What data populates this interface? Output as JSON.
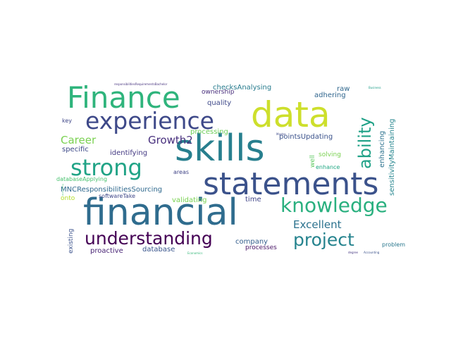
{
  "words": [
    {
      "text": "data",
      "color": "#cddf2c"
    },
    {
      "text": "skills",
      "color": "#277f8e"
    },
    {
      "text": "financial",
      "color": "#2f6c8e"
    },
    {
      "text": "statements",
      "color": "#3b528b"
    },
    {
      "text": "Finance",
      "color": "#2fb47c"
    },
    {
      "text": "experience",
      "color": "#3e4989"
    },
    {
      "text": "strong",
      "color": "#20a386"
    },
    {
      "text": "knowledge",
      "color": "#2ab07f"
    },
    {
      "text": "understanding",
      "color": "#440154"
    },
    {
      "text": "project",
      "color": "#25838e"
    },
    {
      "text": "ability",
      "color": "#1fa187"
    },
    {
      "text": "Excellent",
      "color": "#2c728e"
    },
    {
      "text": "Growth2",
      "color": "#472f7d"
    },
    {
      "text": "Career",
      "color": "#7ad151"
    },
    {
      "text": "identifying",
      "color": "#443a83"
    },
    {
      "text": "specific",
      "color": "#3e4a89"
    },
    {
      "text": "processing",
      "color": "#6ece58"
    },
    {
      "text": "pointsUpdating",
      "color": "#3b528b"
    },
    {
      "text": "checksAnalysing",
      "color": "#287c8e"
    },
    {
      "text": "quality",
      "color": "#3e4989"
    },
    {
      "text": "ownership",
      "color": "#472d7b"
    },
    {
      "text": "raw",
      "color": "#31688e"
    },
    {
      "text": "adhering",
      "color": "#31668e"
    },
    {
      "text": "MNCResponsibilitiesSourcing",
      "color": "#30698e"
    },
    {
      "text": "databaseApplying",
      "color": "#48c16e"
    },
    {
      "text": "softwareTake",
      "color": "#3f4788"
    },
    {
      "text": "validating",
      "color": "#7ad151"
    },
    {
      "text": "areas",
      "color": "#414487"
    },
    {
      "text": "time",
      "color": "#404588"
    },
    {
      "text": "onto",
      "color": "#b5de2b"
    },
    {
      "text": "existing",
      "color": "#3b528b"
    },
    {
      "text": "proactive",
      "color": "#482475"
    },
    {
      "text": "database",
      "color": "#39558c"
    },
    {
      "text": "company",
      "color": "#355f8d"
    },
    {
      "text": "processes",
      "color": "#471365"
    },
    {
      "text": "problem",
      "color": "#2a788e"
    },
    {
      "text": "solving",
      "color": "#7ad151"
    },
    {
      "text": "enhance",
      "color": "#22a884"
    },
    {
      "text": "well",
      "color": "#5ec962"
    },
    {
      "text": "enhancing",
      "color": "#2c728e"
    },
    {
      "text": "sensitivityMaintaining",
      "color": "#25858e"
    },
    {
      "text": "key",
      "color": "#3f4788"
    },
    {
      "text": "responsibilitiesRequirementsBachelor",
      "color": "#46337e"
    },
    {
      "text": "Business",
      "color": "#1f9e89"
    },
    {
      "text": "Master",
      "color": "#3e4989"
    },
    {
      "text": "Economics",
      "color": "#35b779"
    },
    {
      "text": "degree",
      "color": "#453781"
    },
    {
      "text": "Accounting",
      "color": "#3b528b"
    },
    {
      "text": "Accounting",
      "color": "#44bf70"
    }
  ]
}
